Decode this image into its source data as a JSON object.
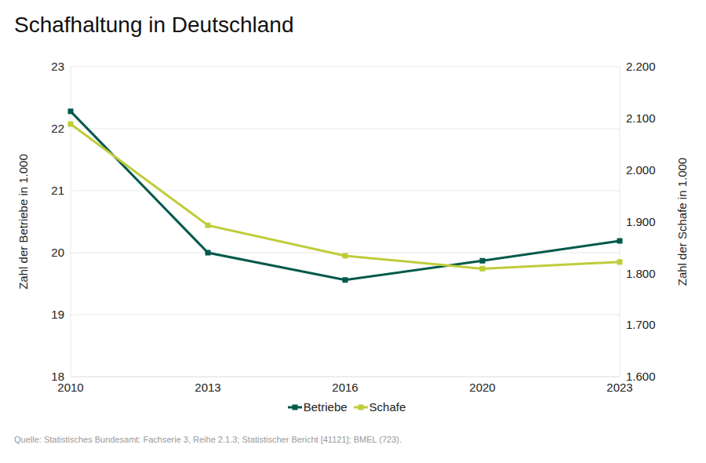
{
  "chart_data": {
    "type": "line",
    "title": "Schafhaltung in Deutschland",
    "source": "Quelle: Statistisches Bundesamt: Fachserie 3, Reihe 2.1.3; Statistischer Bericht [41121]; BMEL (723).",
    "categories": [
      "2010",
      "2013",
      "2016",
      "2020",
      "2023"
    ],
    "y_label": "Zahl der Betriebe in 1.000",
    "y2_label": "Zahl der Schafe in 1.000",
    "ylim": [
      18,
      23
    ],
    "yticks": [
      18,
      19,
      20,
      21,
      22,
      23
    ],
    "y2lim": [
      1600,
      2200
    ],
    "y2ticks": [
      {
        "value": 1600,
        "label": "1.600"
      },
      {
        "value": 1700,
        "label": "1.700"
      },
      {
        "value": 1800,
        "label": "1.800"
      },
      {
        "value": 1900,
        "label": "1.900"
      },
      {
        "value": 2000,
        "label": "2.000"
      },
      {
        "value": 2100,
        "label": "2.100"
      },
      {
        "value": 2200,
        "label": "2.200"
      }
    ],
    "grid": true,
    "legend": "bottom",
    "series": [
      {
        "name": "Betriebe",
        "color": "#00594c",
        "marker": "square",
        "values": [
          22.28,
          20.0,
          19.56,
          19.87,
          20.19
        ]
      },
      {
        "name": "Schafe",
        "color": "#bfcc3a",
        "marker": "square",
        "axis": "y2",
        "values": [
          2089,
          1893,
          1834,
          1809,
          1822
        ]
      }
    ]
  }
}
